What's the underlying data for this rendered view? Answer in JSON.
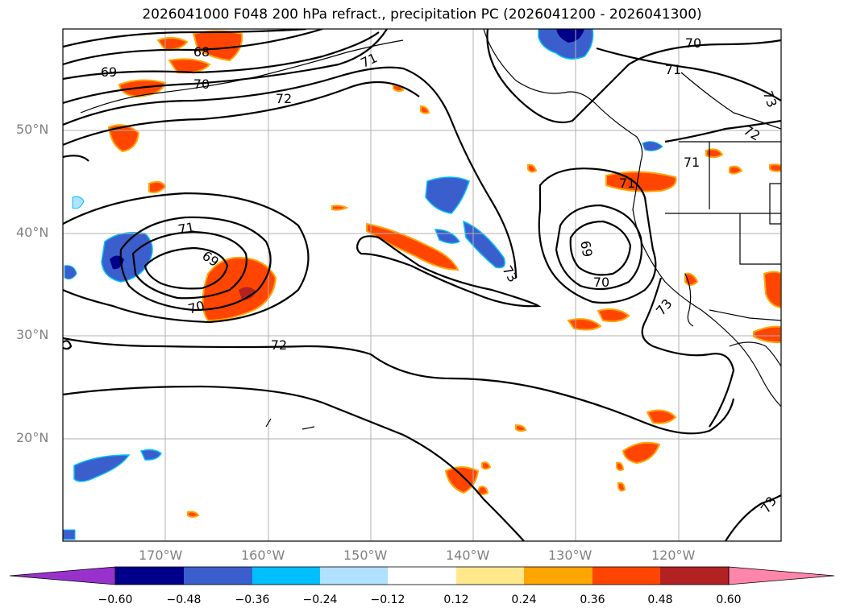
{
  "title": "2026041000 F048 200 hPa refract., precipitation PC (2026041200 - 2026041300)",
  "lat_labels": [
    "50°N",
    "40°N",
    "30°N",
    "20°N"
  ],
  "lon_labels": [
    "170°W",
    "160°W",
    "150°W",
    "140°W",
    "130°W",
    "120°W"
  ],
  "colorbar": {
    "ticks": [
      "−0.60",
      "−0.48",
      "−0.36",
      "−0.24",
      "−0.12",
      "0.12",
      "0.24",
      "0.36",
      "0.48",
      "0.60"
    ],
    "colors": [
      "#9932cc",
      "#00008b",
      "#3a5fcd",
      "#00bfff",
      "#b0e2ff",
      "#ffffff",
      "#ffe88c",
      "#ffa500",
      "#ff4500",
      "#b22222",
      "#ff85aa"
    ]
  },
  "contour_labels": [
    "68",
    "69",
    "70",
    "71",
    "72",
    "73",
    "69",
    "70",
    "71",
    "72",
    "73",
    "70",
    "71",
    "72",
    "73",
    "71",
    "69",
    "70",
    "71",
    "73",
    "71"
  ]
}
